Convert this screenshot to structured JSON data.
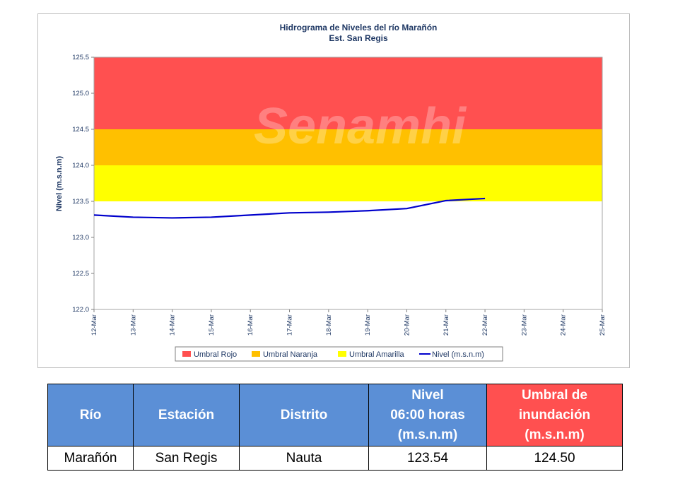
{
  "chart_data": {
    "type": "line",
    "title": "Hidrograma de Niveles del río Marañón",
    "subtitle": "Est. San Regis",
    "watermark": "Senamhi",
    "ylabel": "Nivel (m.s.n.m)",
    "xlabel": "",
    "ylim": [
      122.0,
      125.5
    ],
    "yticks": [
      "122.0",
      "122.5",
      "123.0",
      "123.5",
      "124.0",
      "124.5",
      "125.0",
      "125.5"
    ],
    "categories": [
      "12-Mar",
      "13-Mar",
      "14-Mar",
      "15-Mar",
      "16-Mar",
      "17-Mar",
      "18-Mar",
      "19-Mar",
      "20-Mar",
      "21-Mar",
      "22-Mar",
      "23-Mar",
      "24-Mar",
      "25-Mar"
    ],
    "bands": [
      {
        "name": "Umbral Rojo",
        "from": 124.5,
        "to": 125.5,
        "color": "#ff5050"
      },
      {
        "name": "Umbral Naranja",
        "from": 124.0,
        "to": 124.5,
        "color": "#ffc000"
      },
      {
        "name": "Umbral Amarilla",
        "from": 123.5,
        "to": 124.0,
        "color": "#ffff00"
      }
    ],
    "series": [
      {
        "name": "Nivel (m.s.n.m)",
        "color": "#0000cc",
        "x": [
          "12-Mar",
          "13-Mar",
          "14-Mar",
          "15-Mar",
          "16-Mar",
          "17-Mar",
          "18-Mar",
          "19-Mar",
          "20-Mar",
          "21-Mar",
          "22-Mar"
        ],
        "values": [
          123.31,
          123.28,
          123.27,
          123.28,
          123.31,
          123.34,
          123.35,
          123.37,
          123.4,
          123.51,
          123.54
        ]
      }
    ],
    "grid": false,
    "legend_position": "bottom"
  },
  "table": {
    "headers": [
      "Río",
      "Estación",
      "Distrito",
      "Nivel\n06:00 horas\n(m.s.n.m)",
      "Umbral de\ninundación\n(m.s.n.m)"
    ],
    "row": [
      "Marañón",
      "San Regis",
      "Nauta",
      "123.54",
      "124.50"
    ]
  },
  "colors": {
    "header_blue": "#5b8fd6",
    "header_red": "#ff5050"
  }
}
